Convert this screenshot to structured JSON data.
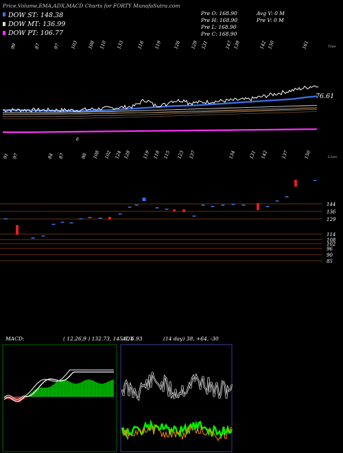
{
  "header": {
    "title": "Price,Volume,EMA,ADX,MACD Charts for FORTY MunafaSutra.com",
    "legend": [
      {
        "label": "DOW ST: 148.38",
        "color": "#3b6fe0"
      },
      {
        "label": "DOW MT: 136.99",
        "color": "#d9d9d9"
      },
      {
        "label": "DOW PT: 106.77",
        "color": "#ff33ff"
      }
    ],
    "quote1": [
      "Pre  O: 168.90",
      "Pre  H: 168.90",
      "Pre  L: 168.90",
      "Pre  C: 168.90"
    ],
    "quote2": [
      "Avg V: 0  M",
      "Pre  V: 0  M"
    ]
  },
  "colors": {
    "price": "#ffffff",
    "ema_short": "#3b6fe0",
    "ema_mid": "#d9d9d9",
    "ema_long": "#ff33ff",
    "grid": "#8b4513",
    "up": "#3b6fe0",
    "down": "#e02020",
    "macd_green": "#00cc00",
    "macd_red": "#e02020",
    "adx_green": "#00ee00",
    "adx_orange": "#ff8c00"
  },
  "chart_data": [
    {
      "type": "line",
      "name": "price-panel",
      "top_axis_label": "Tops",
      "last_price_label": "76.61",
      "tops_labels": [
        "99",
        "87",
        "97",
        "103",
        "108",
        "110",
        "133",
        "116",
        "119",
        "126",
        "129",
        "131",
        "147",
        "139",
        "142",
        "150",
        "161"
      ],
      "bottom_marker": "6",
      "series": [
        {
          "values": [
            131,
            131,
            131,
            130.5,
            130.2,
            130,
            130,
            130,
            130.5,
            131,
            132,
            133,
            134,
            135,
            136,
            136.5,
            137,
            138,
            139,
            140,
            141,
            142,
            143,
            144,
            145,
            147,
            148.4
          ]
        },
        {
          "values": [
            128,
            128,
            128,
            128,
            128,
            128.5,
            128.5,
            129,
            129,
            129.5,
            130,
            130.5,
            131,
            131.5,
            132,
            132.5,
            133,
            133.5,
            134,
            134.5,
            135,
            135.5,
            136,
            136.5,
            137
          ]
        },
        {
          "values": [
            126,
            126,
            126,
            126.2,
            126.4,
            126.6,
            126.8,
            127,
            127.2,
            127.4,
            127.6,
            127.8,
            128,
            128.3,
            128.6,
            129,
            129.4,
            129.8,
            130.2,
            130.6,
            131,
            131.5,
            132,
            132.5,
            133
          ]
        },
        {
          "values": [
            103,
            103,
            103,
            103.2,
            103.4,
            103.6,
            103.8,
            104,
            104.2,
            104.4,
            104.6,
            104.8,
            105,
            105.2,
            105.4,
            105.6,
            105.8,
            106,
            106.2,
            106.4,
            106.6,
            106.77
          ]
        }
      ]
    },
    {
      "type": "bar",
      "name": "volume-panel",
      "axis_label": "Lows",
      "lows_labels": [
        "91",
        "97",
        "84",
        "87",
        "98",
        "108",
        "102",
        "124",
        "128",
        "119",
        "118",
        "115",
        "123",
        "137",
        "134",
        "131",
        "142",
        "137",
        "150"
      ],
      "level_labels": [
        "144",
        "136",
        "129",
        "114",
        "108",
        "102",
        "96",
        "90",
        "85"
      ]
    },
    {
      "type": "bar",
      "name": "macd-panel",
      "title": "MACD:",
      "params": "( 12,26,9 ) 132.73,  145.8,  6.93"
    },
    {
      "type": "line",
      "name": "adx-panel",
      "title": "ADX",
      "params": "(14  day) 38,  +64,  -30"
    }
  ]
}
